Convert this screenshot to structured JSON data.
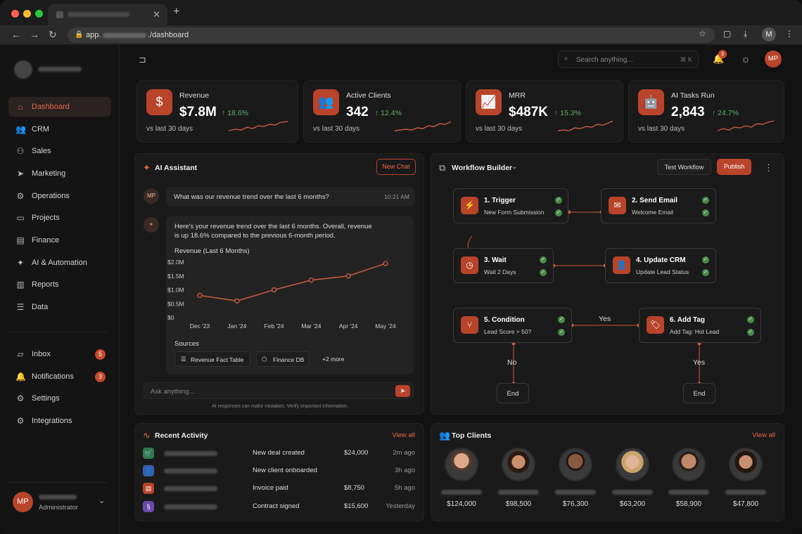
{
  "browser": {
    "url_prefix": "app.",
    "url_path": "./dashboard",
    "profile_initial": "M"
  },
  "sidebar": {
    "items": [
      {
        "label": "Dashboard",
        "icon": "home-icon"
      },
      {
        "label": "CRM",
        "icon": "users-icon"
      },
      {
        "label": "Sales",
        "icon": "handshake-icon"
      },
      {
        "label": "Marketing",
        "icon": "megaphone-icon"
      },
      {
        "label": "Operations",
        "icon": "gear-icon"
      },
      {
        "label": "Projects",
        "icon": "folder-icon"
      },
      {
        "label": "Finance",
        "icon": "wallet-icon"
      },
      {
        "label": "AI & Automation",
        "icon": "sparkle-icon"
      },
      {
        "label": "Reports",
        "icon": "bar-chart-icon"
      },
      {
        "label": "Data",
        "icon": "database-icon"
      }
    ],
    "bottom_items": [
      {
        "label": "Inbox",
        "badge": "5",
        "icon": "inbox-icon"
      },
      {
        "label": "Notifications",
        "badge": "3",
        "icon": "bell-icon"
      },
      {
        "label": "Settings",
        "icon": "gear-icon"
      },
      {
        "label": "Integrations",
        "icon": "integrations-icon"
      }
    ],
    "user": {
      "initials": "MP",
      "role": "Administrator"
    }
  },
  "topbar": {
    "search_placeholder": "Search anything...",
    "search_shortcut": "⌘ K",
    "notification_count": "3",
    "avatar_initials": "MP"
  },
  "stats": [
    {
      "label": "Revenue",
      "value": "$7.8M",
      "change": "18.6%",
      "sub": "vs last 30 days",
      "icon": "dollar-icon"
    },
    {
      "label": "Active Clients",
      "value": "342",
      "change": "12.4%",
      "sub": "vs last 30 days",
      "icon": "users-icon"
    },
    {
      "label": "MRR",
      "value": "$487K",
      "change": "15.3%",
      "sub": "vs last 30 days",
      "icon": "trend-icon"
    },
    {
      "label": "AI Tasks Run",
      "value": "2,843",
      "change": "24.7%",
      "sub": "vs last 30 days",
      "icon": "robot-icon"
    }
  ],
  "assistant": {
    "title": "AI Assistant",
    "new_chat": "New Chat",
    "user_initials": "MP",
    "question": "What was our revenue trend over the last 6 months?",
    "question_time": "10:21 AM",
    "answer_line1": "Here's your revenue trend over the last 6 months. Overall, revenue",
    "answer_line2": "is up 18.6% compared to the previous 6-month period.",
    "sources_label": "Sources",
    "sources": [
      "Revenue Fact Table",
      "Finance DB"
    ],
    "more_sources": "+2 more",
    "input_placeholder": "Ask anything...",
    "disclaimer": "AI responses can make mistakes. Verify important information."
  },
  "chart_data": {
    "type": "line",
    "title": "Revenue (Last 6 Months)",
    "categories": [
      "Dec '23",
      "Jan '24",
      "Feb '24",
      "Mar '24",
      "Apr '24",
      "May '24"
    ],
    "values": [
      0.8,
      0.6,
      1.0,
      1.35,
      1.5,
      1.95
    ],
    "y_ticks": [
      "$0",
      "$0.5M",
      "$1.0M",
      "$1.5M",
      "$2.0M"
    ],
    "ylim": [
      0,
      2
    ],
    "grid": false,
    "series_color": "#c65a3e"
  },
  "workflow": {
    "title": "Workflow Builder",
    "test_label": "Test Workflow",
    "publish_label": "Publish",
    "nodes": [
      {
        "title": "1. Trigger",
        "sub": "New Form Submission",
        "icon": "bolt-icon"
      },
      {
        "title": "2. Send Email",
        "sub": "Welcome Email",
        "icon": "mail-icon"
      },
      {
        "title": "3. Wait",
        "sub": "Wait 2 Days",
        "icon": "clock-icon"
      },
      {
        "title": "4. Update CRM",
        "sub": "Update Lead Status",
        "icon": "user-icon"
      },
      {
        "title": "5. Condition",
        "sub": "Lead Score > 50?",
        "icon": "branch-icon"
      },
      {
        "title": "6. Add Tag",
        "sub": "Add Tag: Hot Lead",
        "icon": "tag-icon"
      }
    ],
    "labels": {
      "yes_top": "Yes",
      "no": "No",
      "yes_bottom": "Yes",
      "end": "End"
    }
  },
  "activity": {
    "title": "Recent Activity",
    "view_all": "View all",
    "rows": [
      {
        "event": "New deal created",
        "amount": "$24,000",
        "time": "2m ago",
        "color": "#2f7a4a",
        "icon": "cart-icon"
      },
      {
        "event": "New client onboarded",
        "amount": "",
        "time": "3h ago",
        "color": "#3a5fa8",
        "icon": "user-icon"
      },
      {
        "event": "Invoice paid",
        "amount": "$8,750",
        "time": "5h ago",
        "color": "#b8442a",
        "icon": "invoice-icon"
      },
      {
        "event": "Contract signed",
        "amount": "$15,600",
        "time": "Yesterday",
        "color": "#6a4aa8",
        "icon": "signature-icon"
      }
    ]
  },
  "clients": {
    "title": "Top Clients",
    "view_all": "View all",
    "amounts": [
      "$124,000",
      "$98,500",
      "$76,300",
      "$63,200",
      "$58,900",
      "$47,800"
    ]
  },
  "colors": {
    "accent": "#b8442a",
    "accent_text": "#e86a45",
    "positive": "#5fb36a"
  }
}
